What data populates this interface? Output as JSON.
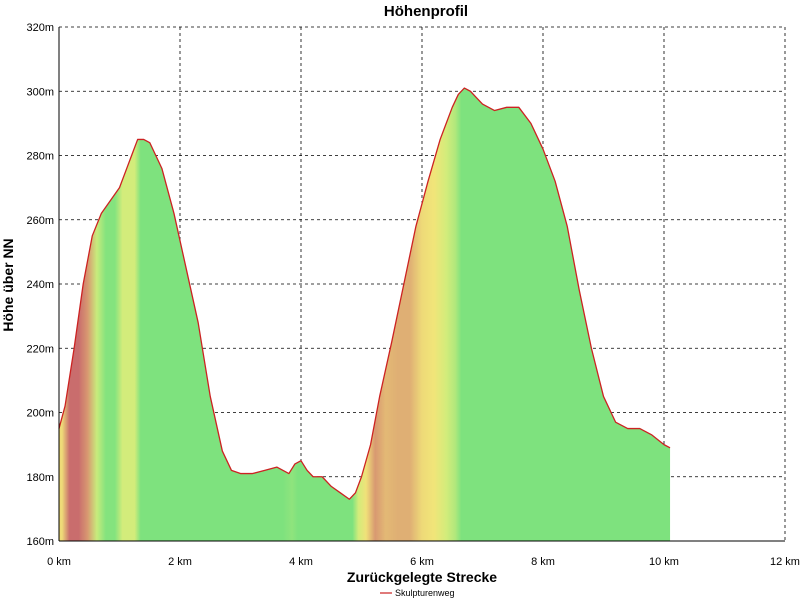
{
  "chart_data": {
    "type": "area",
    "title": "Höhenprofil",
    "xlabel": "Zurückgelegte Strecke",
    "ylabel": "Höhe über NN",
    "xlim": [
      0,
      12
    ],
    "ylim": [
      160,
      320
    ],
    "x_ticks": [
      0,
      2,
      4,
      6,
      8,
      10,
      12
    ],
    "x_tick_labels": [
      "0 km",
      "2 km",
      "4 km",
      "6 km",
      "8 km",
      "10 km",
      "12 km"
    ],
    "y_ticks": [
      160,
      180,
      200,
      220,
      240,
      260,
      280,
      300,
      320
    ],
    "y_tick_labels": [
      "160m",
      "180m",
      "200m",
      "220m",
      "240m",
      "260m",
      "280m",
      "300m",
      "320m"
    ],
    "grid": true,
    "legend_position": "bottom-center",
    "series": [
      {
        "name": "Skulpturenweg",
        "color": "#cc2222",
        "x": [
          0,
          0.1,
          0.25,
          0.4,
          0.55,
          0.7,
          0.85,
          1.0,
          1.1,
          1.2,
          1.3,
          1.4,
          1.5,
          1.7,
          1.9,
          2.1,
          2.3,
          2.5,
          2.7,
          2.85,
          3.0,
          3.2,
          3.4,
          3.6,
          3.8,
          3.9,
          4.0,
          4.1,
          4.2,
          4.35,
          4.5,
          4.65,
          4.8,
          4.9,
          5.0,
          5.15,
          5.3,
          5.5,
          5.7,
          5.9,
          6.1,
          6.3,
          6.5,
          6.6,
          6.7,
          6.8,
          6.9,
          7.0,
          7.2,
          7.4,
          7.6,
          7.8,
          8.0,
          8.2,
          8.4,
          8.6,
          8.8,
          9.0,
          9.2,
          9.4,
          9.6,
          9.8,
          10.0,
          10.1
        ],
        "y": [
          195,
          202,
          220,
          240,
          255,
          262,
          266,
          270,
          275,
          280,
          285,
          285,
          284,
          276,
          262,
          245,
          228,
          205,
          188,
          182,
          181,
          181,
          182,
          183,
          181,
          184,
          185,
          182,
          180,
          180,
          177,
          175,
          173,
          175,
          180,
          190,
          205,
          222,
          240,
          258,
          272,
          285,
          295,
          299,
          301,
          300,
          298,
          296,
          294,
          295,
          295,
          290,
          282,
          272,
          258,
          238,
          220,
          205,
          197,
          195,
          195,
          193,
          190,
          189
        ]
      }
    ],
    "fill_gradient_by_slope": {
      "steep": "#c96d6d",
      "moderate": "#f5f07a",
      "flat": "#7ee27e"
    }
  }
}
